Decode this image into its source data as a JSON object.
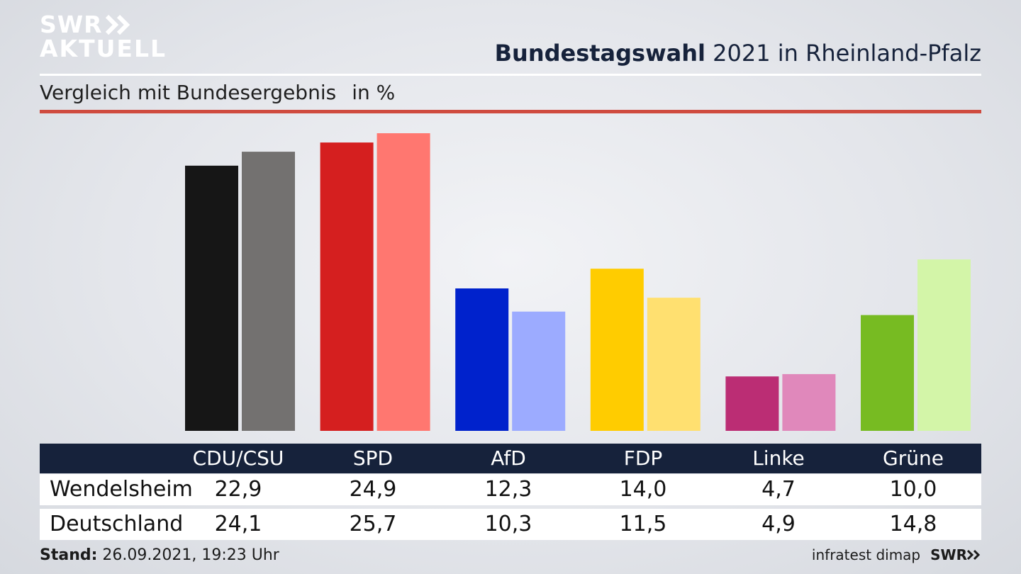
{
  "brand": {
    "logo_line1": "SWR",
    "logo_line2": "AKTUELL",
    "logo_arrow_icon": "double-chevron-right-icon"
  },
  "header": {
    "title_bold": "Bundestagswahl",
    "title_rest": " 2021 in Rheinland-Pfalz",
    "subtitle": "Vergleich mit Bundesergebnis",
    "unit": "in %"
  },
  "colors": {
    "header_text": "#16223b",
    "rule_red": "#cf4b3f",
    "table_header_bg": "#16223b"
  },
  "chart_data": {
    "type": "bar",
    "categories": [
      "CDU/CSU",
      "SPD",
      "AfD",
      "FDP",
      "Linke",
      "Grüne"
    ],
    "series": [
      {
        "name": "Wendelsheim",
        "values": [
          22.9,
          24.9,
          12.3,
          14.0,
          4.7,
          10.0
        ],
        "colors": [
          "#161616",
          "#d51f1f",
          "#0022cc",
          "#ffcc00",
          "#bb2d74",
          "#77bb22"
        ]
      },
      {
        "name": "Deutschland",
        "values": [
          24.1,
          25.7,
          10.3,
          11.5,
          4.9,
          14.8
        ],
        "colors": [
          "#737170",
          "#ff7770",
          "#9cabff",
          "#ffe070",
          "#e088bb",
          "#d3f5a8"
        ]
      }
    ],
    "ylim": [
      0,
      25.7
    ],
    "grid": false,
    "legend": "table-below"
  },
  "table": {
    "headers": [
      "CDU/CSU",
      "SPD",
      "AfD",
      "FDP",
      "Linke",
      "Grüne"
    ],
    "rows": [
      {
        "label": "Wendelsheim",
        "cells": [
          "22,9",
          "24,9",
          "12,3",
          "14,0",
          "4,7",
          "10,0"
        ]
      },
      {
        "label": "Deutschland",
        "cells": [
          "24,1",
          "25,7",
          "10,3",
          "11,5",
          "4,9",
          "14,8"
        ]
      }
    ]
  },
  "footer": {
    "stand_label": "Stand:",
    "stand_value": " 26.09.2021, 19:23 Uhr",
    "source": "infratest dimap",
    "brand_small": "SWR"
  }
}
